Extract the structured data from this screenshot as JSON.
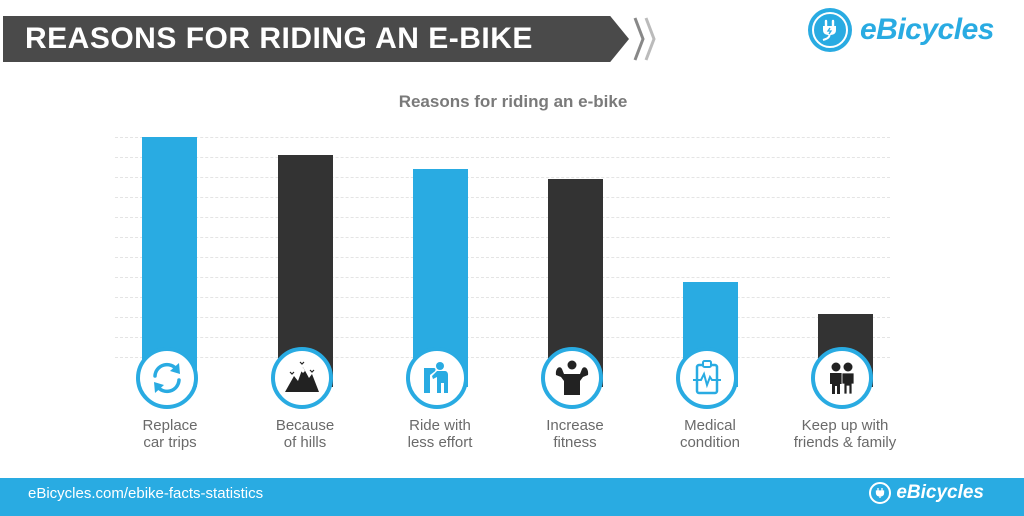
{
  "header": {
    "banner_title": "REASONS FOR RIDING AN E-BIKE",
    "logo_text": "eBicycles",
    "logo_icon": "plug-icon"
  },
  "chart": {
    "title": "Reasons for riding an e-bike",
    "colors": {
      "blue": "#29abe2",
      "dark": "#333333"
    },
    "bars": [
      {
        "label_line1": "Replace",
        "label_line2": "car trips",
        "icon": "refresh-cycle-icon",
        "color": "#29abe2",
        "value": 100
      },
      {
        "label_line1": "Because",
        "label_line2": "of hills",
        "icon": "mountains-icon",
        "color": "#333333",
        "value": 92.5
      },
      {
        "label_line1": "Ride with",
        "label_line2": "less effort",
        "icon": "tired-person-icon",
        "color": "#29abe2",
        "value": 86.7
      },
      {
        "label_line1": "Increase",
        "label_line2": "fitness",
        "icon": "muscle-man-icon",
        "color": "#333333",
        "value": 82.5
      },
      {
        "label_line1": "Medical",
        "label_line2": "condition",
        "icon": "medical-clipboard-icon",
        "color": "#29abe2",
        "value": 39.6
      },
      {
        "label_line1": "Keep up with",
        "label_line2": "friends & family",
        "icon": "two-people-icon",
        "color": "#333333",
        "value": 26.3
      }
    ]
  },
  "chart_data": {
    "type": "bar",
    "title": "Reasons for riding an e-bike",
    "categories": [
      "Replace car trips",
      "Because of hills",
      "Ride with less effort",
      "Increase fitness",
      "Medical condition",
      "Keep up with friends & family"
    ],
    "values": [
      100,
      92.5,
      86.7,
      82.5,
      39.6,
      26.3
    ],
    "value_note": "Relative heights (no numeric axis shown); tallest bar = 100",
    "xlabel": "",
    "ylabel": "",
    "ylim": [
      0,
      100
    ],
    "grid": true,
    "legend": null,
    "colors": [
      "#29abe2",
      "#333333",
      "#29abe2",
      "#333333",
      "#29abe2",
      "#333333"
    ]
  },
  "footer": {
    "url": "eBicycles.com/ebike-facts-statistics",
    "logo_text": "eBicycles"
  }
}
